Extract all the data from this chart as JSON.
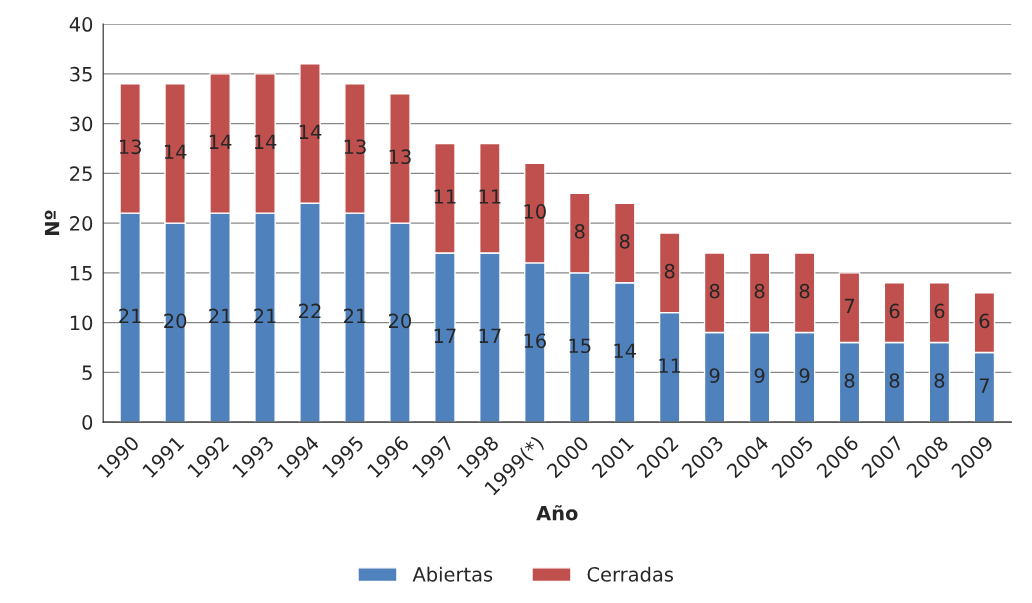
{
  "chart_data": {
    "type": "bar",
    "stacked": true,
    "xlabel": "Año",
    "ylabel": "Nº",
    "categories": [
      "1990",
      "1991",
      "1992",
      "1993",
      "1994",
      "1995",
      "1996",
      "1997",
      "1998",
      "1999(*)",
      "2000",
      "2001",
      "2002",
      "2003",
      "2004",
      "2005",
      "2006",
      "2007",
      "2008",
      "2009"
    ],
    "series": [
      {
        "name": "Abiertas",
        "color": "#4f81bd",
        "values": [
          21,
          20,
          21,
          21,
          22,
          21,
          20,
          17,
          17,
          16,
          15,
          14,
          11,
          9,
          9,
          9,
          8,
          8,
          8,
          7
        ]
      },
      {
        "name": "Cerradas",
        "color": "#c0504d",
        "values": [
          13,
          14,
          14,
          14,
          14,
          13,
          13,
          11,
          11,
          10,
          8,
          8,
          8,
          8,
          8,
          8,
          7,
          6,
          6,
          6
        ]
      }
    ],
    "ylim": [
      0,
      40
    ],
    "yticks": [
      0,
      5,
      10,
      15,
      20,
      25,
      30,
      35,
      40
    ],
    "grid": "y",
    "legend": "bottom",
    "data_labels": true
  }
}
